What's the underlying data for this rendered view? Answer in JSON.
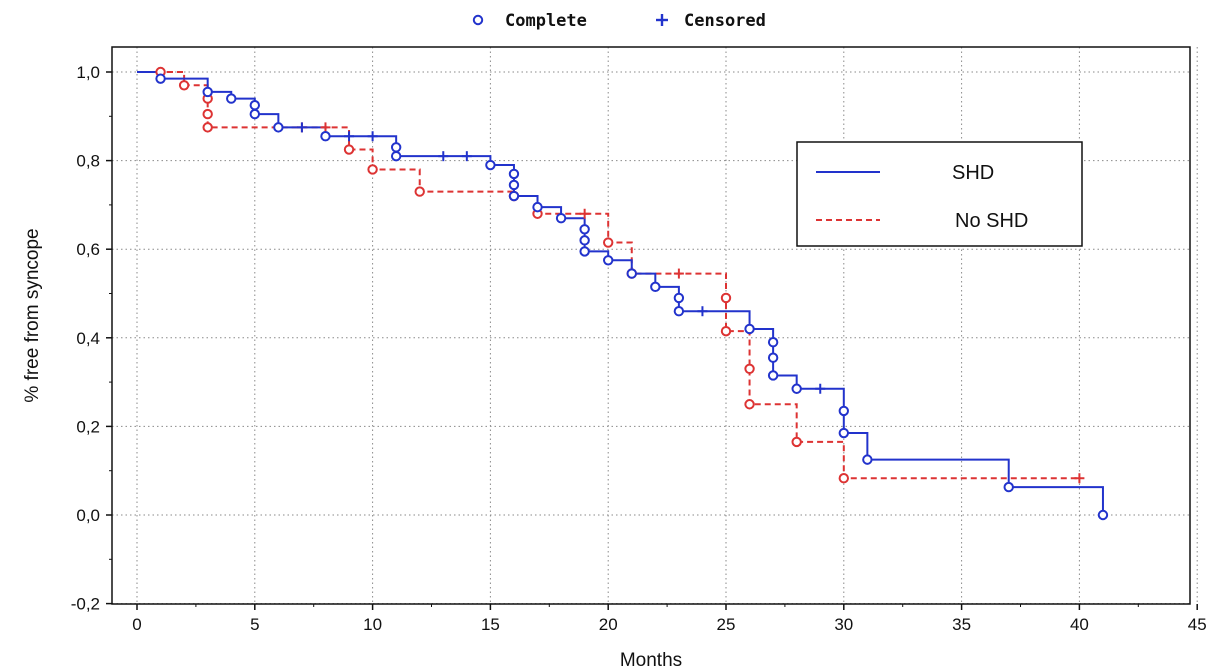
{
  "chart_data": {
    "type": "line",
    "title": "",
    "xlabel": "Months",
    "ylabel": "% free from syncope",
    "xlim": [
      0,
      45
    ],
    "ylim": [
      -0.2,
      1.05
    ],
    "x_ticks": [
      0,
      5,
      10,
      15,
      20,
      25,
      30,
      35,
      40,
      45
    ],
    "x_tick_labels": [
      "0",
      "5",
      "10",
      "15",
      "20",
      "25",
      "30",
      "35",
      "40",
      "45"
    ],
    "y_ticks": [
      -0.2,
      0.0,
      0.2,
      0.4,
      0.6,
      0.8,
      1.0
    ],
    "y_tick_labels": [
      "-0,2",
      "0,0",
      "0,2",
      "0,4",
      "0,6",
      "0,8",
      "1,0"
    ],
    "grid": true,
    "marker_legend": {
      "position": "top-center",
      "complete_label": "Complete",
      "censored_label": "Censored"
    },
    "legend": {
      "position": "right",
      "entries": [
        "SHD",
        "No SHD"
      ]
    },
    "series": [
      {
        "name": "SHD",
        "color": "#2233cc",
        "line_style": "solid",
        "steps": [
          [
            0,
            1.0
          ],
          [
            1,
            0.985
          ],
          [
            3,
            0.955
          ],
          [
            4,
            0.94
          ],
          [
            5,
            0.925
          ],
          [
            5,
            0.905
          ],
          [
            6,
            0.875
          ],
          [
            8,
            0.855
          ],
          [
            11,
            0.83
          ],
          [
            11,
            0.81
          ],
          [
            15,
            0.79
          ],
          [
            16,
            0.77
          ],
          [
            16,
            0.745
          ],
          [
            16,
            0.72
          ],
          [
            17,
            0.695
          ],
          [
            18,
            0.67
          ],
          [
            19,
            0.645
          ],
          [
            19,
            0.62
          ],
          [
            19,
            0.595
          ],
          [
            20,
            0.575
          ],
          [
            21,
            0.545
          ],
          [
            22,
            0.515
          ],
          [
            23,
            0.49
          ],
          [
            23,
            0.46
          ],
          [
            26,
            0.42
          ],
          [
            27,
            0.39
          ],
          [
            27,
            0.355
          ],
          [
            27,
            0.315
          ],
          [
            28,
            0.285
          ],
          [
            30,
            0.235
          ],
          [
            30,
            0.185
          ],
          [
            31,
            0.125
          ],
          [
            37,
            0.063
          ],
          [
            41,
            0.0
          ]
        ],
        "complete": [
          [
            1,
            0.985
          ],
          [
            3,
            0.955
          ],
          [
            4,
            0.94
          ],
          [
            5,
            0.925
          ],
          [
            5,
            0.905
          ],
          [
            6,
            0.875
          ],
          [
            8,
            0.855
          ],
          [
            11,
            0.83
          ],
          [
            11,
            0.81
          ],
          [
            15,
            0.79
          ],
          [
            16,
            0.77
          ],
          [
            16,
            0.745
          ],
          [
            16,
            0.72
          ],
          [
            17,
            0.695
          ],
          [
            18,
            0.67
          ],
          [
            19,
            0.645
          ],
          [
            19,
            0.62
          ],
          [
            19,
            0.595
          ],
          [
            20,
            0.575
          ],
          [
            21,
            0.545
          ],
          [
            22,
            0.515
          ],
          [
            23,
            0.49
          ],
          [
            23,
            0.46
          ],
          [
            26,
            0.42
          ],
          [
            27,
            0.39
          ],
          [
            27,
            0.355
          ],
          [
            27,
            0.315
          ],
          [
            28,
            0.285
          ],
          [
            30,
            0.235
          ],
          [
            30,
            0.185
          ],
          [
            31,
            0.125
          ],
          [
            37,
            0.063
          ],
          [
            41,
            0.0
          ]
        ],
        "censored": [
          [
            7,
            0.875
          ],
          [
            9,
            0.855
          ],
          [
            10,
            0.855
          ],
          [
            13,
            0.81
          ],
          [
            14,
            0.81
          ],
          [
            24,
            0.46
          ],
          [
            29,
            0.285
          ]
        ]
      },
      {
        "name": "No SHD",
        "color": "#dd3333",
        "line_style": "dashed",
        "steps": [
          [
            0,
            1.0
          ],
          [
            1,
            1.0
          ],
          [
            2,
            0.97
          ],
          [
            3,
            0.94
          ],
          [
            3,
            0.905
          ],
          [
            3,
            0.875
          ],
          [
            9,
            0.825
          ],
          [
            10,
            0.78
          ],
          [
            12,
            0.73
          ],
          [
            16,
            0.72
          ],
          [
            17,
            0.68
          ],
          [
            20,
            0.615
          ],
          [
            21,
            0.545
          ],
          [
            25,
            0.49
          ],
          [
            25,
            0.415
          ],
          [
            26,
            0.33
          ],
          [
            26,
            0.25
          ],
          [
            28,
            0.165
          ],
          [
            30,
            0.083
          ]
        ],
        "complete": [
          [
            1,
            1.0
          ],
          [
            2,
            0.97
          ],
          [
            3,
            0.94
          ],
          [
            3,
            0.905
          ],
          [
            3,
            0.875
          ],
          [
            9,
            0.825
          ],
          [
            10,
            0.78
          ],
          [
            12,
            0.73
          ],
          [
            16,
            0.72
          ],
          [
            17,
            0.68
          ],
          [
            20,
            0.615
          ],
          [
            21,
            0.545
          ],
          [
            25,
            0.49
          ],
          [
            25,
            0.415
          ],
          [
            26,
            0.33
          ],
          [
            26,
            0.25
          ],
          [
            28,
            0.165
          ],
          [
            30,
            0.083
          ]
        ],
        "censored": [
          [
            7,
            0.875
          ],
          [
            8,
            0.875
          ],
          [
            19,
            0.68
          ],
          [
            23,
            0.545
          ],
          [
            40,
            0.083
          ]
        ]
      }
    ]
  }
}
